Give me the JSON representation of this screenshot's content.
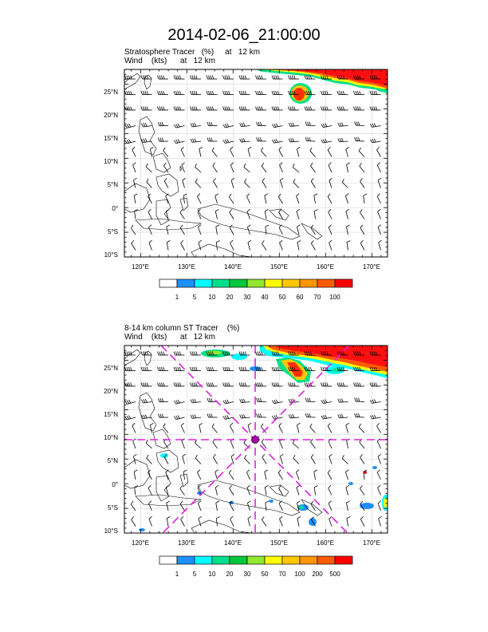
{
  "title": "2014-02-06_21:00:00",
  "panels": [
    {
      "caption_line1": "Stratosphere Tracer   (%)     at   12 km",
      "caption_line2": "Wind    (kts)      at   12 km",
      "lat_labels": [
        "25°N",
        "20°N",
        "15°N",
        "10°N",
        "5°N",
        "0°",
        "5°S",
        "10°S"
      ],
      "lon_labels": [
        "120°E",
        "130°E",
        "140°E",
        "150°E",
        "160°E",
        "170°E"
      ],
      "colorbar_labels": [
        "1",
        "5",
        "10",
        "20",
        "30",
        "40",
        "50",
        "60",
        "70",
        "100"
      ],
      "colorbar_colors": [
        "#ffffff",
        "#1e90ff",
        "#00ffff",
        "#00e08a",
        "#00c83c",
        "#90e830",
        "#ffff00",
        "#ffc800",
        "#ff9600",
        "#ff5a00",
        "#ff0000"
      ]
    },
    {
      "caption_line1": "8-14 km column ST Tracer    (%)",
      "caption_line2": "Wind    (kts)      at   12 km",
      "lat_labels": [
        "25°N",
        "20°N",
        "15°N",
        "10°N",
        "5°N",
        "0°",
        "5°S",
        "10°S"
      ],
      "lon_labels": [
        "120°E",
        "130°E",
        "140°E",
        "150°E",
        "160°E",
        "170°E"
      ],
      "colorbar_labels": [
        "1",
        "5",
        "10",
        "20",
        "30",
        "50",
        "70",
        "100",
        "200",
        "500"
      ],
      "colorbar_colors": [
        "#ffffff",
        "#1e90ff",
        "#00ffff",
        "#00e08a",
        "#00c83c",
        "#90e830",
        "#ffff00",
        "#ffc800",
        "#ff9600",
        "#ff5a00",
        "#ff0000"
      ]
    }
  ],
  "cross_section_color": "#e020e0",
  "cross_section_center": {
    "lon": 145,
    "lat": 10
  }
}
